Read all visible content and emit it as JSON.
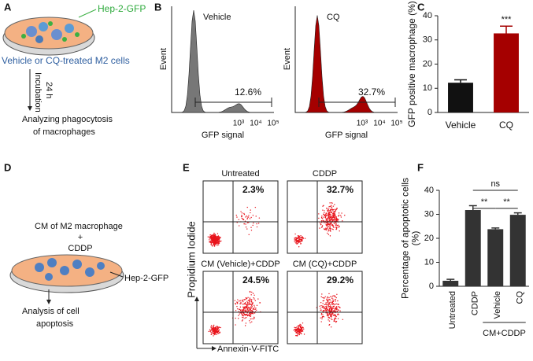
{
  "panels": [
    "A",
    "B",
    "C",
    "D",
    "E",
    "F"
  ],
  "panel_a": {
    "cells": "Hep-2-GFP",
    "treatment": "Vehicle or CQ-treated M2 cells",
    "step": [
      "Incubation",
      "24 h"
    ],
    "result": [
      "Analyzing phagocytosis",
      "of macrophages"
    ]
  },
  "panel_b": {
    "plots": [
      {
        "title": "Vehicle",
        "gate": "12.6%"
      },
      {
        "title": "CQ",
        "gate": "32.7%"
      }
    ],
    "y_label": "Event",
    "x_label": "GFP signal",
    "x_ticks": [
      "10³",
      "10⁴",
      "10⁵"
    ]
  },
  "panel_d": {
    "treatment": [
      "CM of M2 macrophage",
      "+",
      "CDDP"
    ],
    "cells": "Hep-2-GFP",
    "result": [
      "Analysis of cell",
      "apoptosis"
    ]
  },
  "panel_e": {
    "plots": [
      {
        "title": "Untreated",
        "quadrant": "2.3%"
      },
      {
        "title": "CDDP",
        "quadrant": "32.7%"
      },
      {
        "title": "CM (Vehicle)+CDDP",
        "quadrant": "24.5%"
      },
      {
        "title": "CM (CQ)+CDDP",
        "quadrant": "29.2%"
      }
    ],
    "y_label": "Propidium Iodide",
    "x_label": "Annexin-V-FITC"
  },
  "chart_data": [
    {
      "type": "bar",
      "y_label": [
        "GFP positive macrophage (%)"
      ],
      "categories": [
        "Vehicle",
        "CQ"
      ],
      "values": [
        12.3,
        32.7
      ],
      "errors": [
        1.2,
        3.0
      ],
      "colors": [
        "#111111",
        "#a50000"
      ],
      "ylim": [
        0,
        40
      ],
      "yticks": [
        0,
        10,
        20,
        30,
        40
      ],
      "annotations": [
        "***"
      ]
    },
    {
      "type": "bar",
      "y_label": [
        "Percentage of apoptotic cells",
        "(%)"
      ],
      "categories": [
        "Untreated",
        "CDDP",
        "Vehicle",
        "CQ"
      ],
      "values": [
        2.3,
        31.8,
        23.8,
        29.8
      ],
      "errors": [
        0.6,
        1.8,
        0.5,
        0.8
      ],
      "colors": [
        "#333333",
        "#333333",
        "#333333",
        "#333333"
      ],
      "ylim": [
        0,
        40
      ],
      "yticks": [
        0,
        10,
        20,
        30,
        40
      ],
      "group_label": "CM+CDDP",
      "annotations": [
        "**",
        "**",
        "ns"
      ]
    }
  ]
}
